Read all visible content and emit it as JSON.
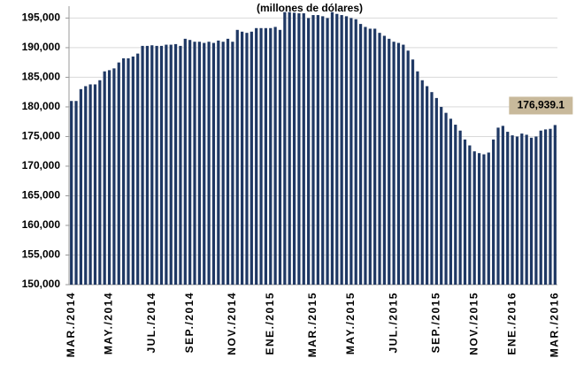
{
  "chart_data": {
    "type": "bar",
    "title": "(millones de dólares)",
    "categories": [
      "MAR./2014",
      null,
      null,
      null,
      null,
      null,
      null,
      null,
      "MAY./2014",
      null,
      null,
      null,
      null,
      null,
      null,
      null,
      null,
      "JUL./2014",
      null,
      null,
      null,
      null,
      null,
      null,
      null,
      "SEP./2014",
      null,
      null,
      null,
      null,
      null,
      null,
      null,
      null,
      "NOV./2014",
      null,
      null,
      null,
      null,
      null,
      null,
      null,
      "ENE./2015",
      null,
      null,
      null,
      null,
      null,
      null,
      null,
      null,
      "MAR./2015",
      null,
      null,
      null,
      null,
      null,
      null,
      null,
      "MAY./2015",
      null,
      null,
      null,
      null,
      null,
      null,
      null,
      null,
      "JUL./2015",
      null,
      null,
      null,
      null,
      null,
      null,
      null,
      null,
      "SEP./2015",
      null,
      null,
      null,
      null,
      null,
      null,
      null,
      "NOV./2015",
      null,
      null,
      null,
      null,
      null,
      null,
      null,
      "ENE./2016",
      null,
      null,
      null,
      null,
      null,
      null,
      null,
      null,
      "MAR./2016"
    ],
    "values": [
      181000,
      181000,
      183000,
      183500,
      183800,
      183800,
      184500,
      186000,
      186200,
      186500,
      187500,
      188200,
      188200,
      188500,
      189000,
      190300,
      190300,
      190400,
      190300,
      190300,
      190500,
      190500,
      190600,
      190300,
      191500,
      191300,
      191000,
      191000,
      190800,
      191000,
      190800,
      191200,
      191000,
      191500,
      191000,
      193000,
      192700,
      192500,
      192700,
      193300,
      193300,
      193300,
      193300,
      193500,
      193000,
      196000,
      196000,
      195900,
      195800,
      195800,
      195000,
      195500,
      195500,
      195300,
      195000,
      196000,
      195700,
      195500,
      195300,
      195000,
      194800,
      194000,
      193500,
      193200,
      193200,
      192500,
      192000,
      191500,
      191000,
      190800,
      190500,
      189500,
      188000,
      186000,
      184500,
      183500,
      182500,
      181500,
      180000,
      179000,
      178000,
      177000,
      176000,
      174500,
      173500,
      172500,
      172200,
      172000,
      172300,
      174500,
      176500,
      176800,
      175800,
      175200,
      175000,
      175500,
      175300,
      174800,
      175000,
      176000,
      176200,
      176300,
      176939.1
    ],
    "value_labels": [
      null,
      null,
      null,
      null,
      null,
      null,
      null,
      null,
      null,
      null,
      null,
      null,
      null,
      null,
      null,
      null,
      null,
      null,
      null,
      null,
      null,
      null,
      null,
      null,
      null,
      null,
      null,
      null,
      null,
      null,
      null,
      null,
      null,
      null,
      null,
      null,
      null,
      null,
      null,
      null,
      null,
      null,
      null,
      null,
      null,
      null,
      null,
      null,
      null,
      null,
      null,
      null,
      null,
      null,
      null,
      null,
      null,
      null,
      null,
      null,
      null,
      null,
      null,
      null,
      null,
      null,
      null,
      null,
      null,
      null,
      null,
      null,
      null,
      null,
      null,
      null,
      null,
      null,
      null,
      null,
      null,
      null,
      null,
      null,
      null,
      null,
      null,
      null,
      null,
      null,
      null,
      null,
      null,
      null,
      null,
      null,
      null,
      null,
      null,
      null,
      null,
      null,
      "176,939.1"
    ],
    "color": "#1f3864",
    "ylim": [
      150000,
      197000
    ],
    "yticks": [
      {
        "value": 150000,
        "label": "150,000"
      },
      {
        "value": 155000,
        "label": "155,000"
      },
      {
        "value": 160000,
        "label": "160,000"
      },
      {
        "value": 165000,
        "label": "165,000"
      },
      {
        "value": 170000,
        "label": "170,000"
      },
      {
        "value": 175000,
        "label": "175,000"
      },
      {
        "value": 180000,
        "label": "180,000"
      },
      {
        "value": 185000,
        "label": "185,000"
      },
      {
        "value": 190000,
        "label": "190,000"
      },
      {
        "value": 195000,
        "label": "195,000"
      }
    ],
    "grid": true
  }
}
